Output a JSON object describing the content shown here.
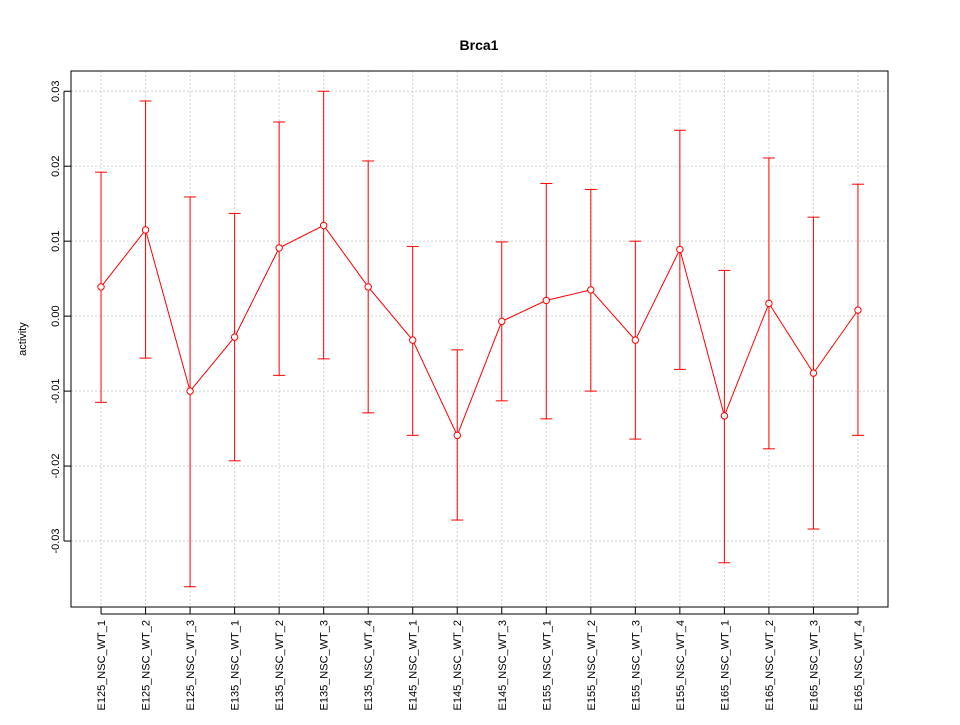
{
  "chart_data": {
    "type": "line",
    "title": "Brca1",
    "xlabel": "",
    "ylabel": "activity",
    "ylim": [
      -0.0388,
      0.0327
    ],
    "yticks": [
      -0.03,
      -0.02,
      -0.01,
      0.0,
      0.01,
      0.02,
      0.03
    ],
    "ytick_labels": [
      "-0.03",
      "-0.02",
      "-0.01",
      "0.00",
      "0.01",
      "0.02",
      "0.03"
    ],
    "grid": true,
    "categories": [
      "E125_NSC_WT_1",
      "E125_NSC_WT_2",
      "E125_NSC_WT_3",
      "E135_NSC_WT_1",
      "E135_NSC_WT_2",
      "E135_NSC_WT_3",
      "E135_NSC_WT_4",
      "E145_NSC_WT_1",
      "E145_NSC_WT_2",
      "E145_NSC_WT_3",
      "E155_NSC_WT_1",
      "E155_NSC_WT_2",
      "E155_NSC_WT_3",
      "E155_NSC_WT_4",
      "E165_NSC_WT_1",
      "E165_NSC_WT_2",
      "E165_NSC_WT_3",
      "E165_NSC_WT_4"
    ],
    "series": [
      {
        "name": "activity",
        "color": "#ff0000",
        "values": [
          0.0039,
          0.0115,
          -0.01,
          -0.0028,
          0.0091,
          0.0121,
          0.0039,
          -0.0032,
          -0.0159,
          -0.0007,
          0.0021,
          0.0035,
          -0.0032,
          0.0089,
          -0.0133,
          0.0017,
          -0.0076,
          0.0008
        ],
        "upper": [
          0.0192,
          0.0287,
          0.0159,
          0.0137,
          0.0259,
          0.03,
          0.0207,
          0.0093,
          -0.0045,
          0.0099,
          0.0177,
          0.0169,
          0.01,
          0.0248,
          0.0061,
          0.0211,
          0.0132,
          0.0176
        ],
        "lower": [
          -0.0115,
          -0.0056,
          -0.0361,
          -0.0193,
          -0.0079,
          -0.0057,
          -0.0129,
          -0.0159,
          -0.0272,
          -0.0113,
          -0.0137,
          -0.01,
          -0.0164,
          -0.0071,
          -0.0329,
          -0.0177,
          -0.0284,
          -0.0159
        ]
      }
    ]
  }
}
